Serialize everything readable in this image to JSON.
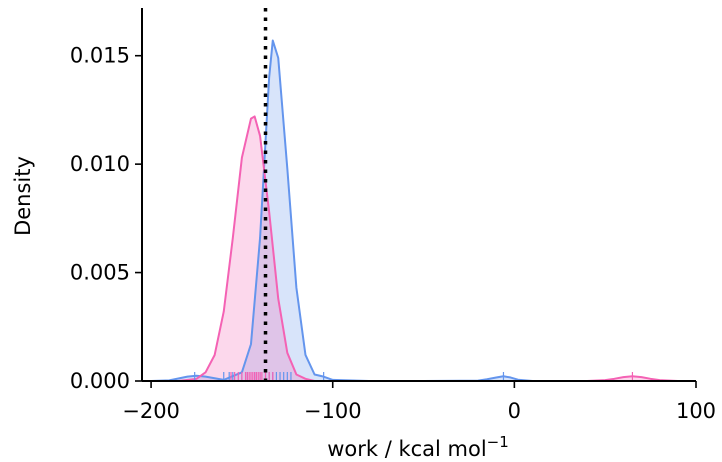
{
  "chart_data": {
    "type": "area",
    "title": "",
    "xlabel": "work / kcal mol",
    "xlabel_superscript": "−1",
    "ylabel": "Density",
    "xlim": [
      -205,
      100
    ],
    "ylim": [
      0,
      0.0172
    ],
    "x_ticks": [
      -200,
      -100,
      0,
      100
    ],
    "x_tick_labels": [
      "−200",
      "−100",
      "0",
      "100"
    ],
    "y_ticks": [
      0,
      0.005,
      0.01,
      0.015
    ],
    "y_tick_labels": [
      "0.000",
      "0.005",
      "0.010",
      "0.015"
    ],
    "grid": false,
    "legend": "none",
    "reference_line": {
      "x": -137,
      "style": "dotted",
      "color": "#000000"
    },
    "series": [
      {
        "color": "#6495ED",
        "fill_opacity": 0.25,
        "x": [
          -200,
          -190,
          -180,
          -175,
          -170,
          -160,
          -150,
          -145,
          -140,
          -135,
          -133,
          -130,
          -125,
          -120,
          -115,
          -110,
          -105,
          -100,
          -80,
          -50,
          -20,
          -15,
          -10,
          -6,
          -2,
          2,
          10,
          30,
          60,
          90,
          100
        ],
        "y": [
          0.0,
          3e-05,
          0.0002,
          0.00024,
          0.0002,
          5e-05,
          0.0004,
          0.0017,
          0.0066,
          0.014,
          0.0157,
          0.0149,
          0.0098,
          0.0043,
          0.0012,
          0.0003,
          0.0002,
          5e-05,
          0.0,
          0.0,
          2e-05,
          8e-05,
          0.00016,
          0.00022,
          0.00016,
          6e-05,
          0.0,
          0.0,
          0.0,
          0.0,
          0.0
        ],
        "rug": [
          -176,
          -160,
          -157,
          -155,
          -150,
          -147,
          -143,
          -140,
          -137,
          -135,
          -133,
          -131,
          -129,
          -127,
          -125,
          -123,
          -105,
          -6
        ]
      },
      {
        "color": "#F462B4",
        "fill_opacity": 0.25,
        "x": [
          -200,
          -185,
          -175,
          -170,
          -165,
          -160,
          -155,
          -150,
          -145,
          -143,
          -140,
          -135,
          -130,
          -125,
          -120,
          -115,
          -110,
          -100,
          -50,
          0,
          40,
          50,
          55,
          60,
          65,
          70,
          75,
          80,
          90,
          100
        ],
        "y": [
          0.0,
          0.0,
          0.0001,
          0.0004,
          0.0012,
          0.0032,
          0.0066,
          0.0103,
          0.0121,
          0.0122,
          0.0113,
          0.0078,
          0.0038,
          0.0013,
          0.0003,
          0.0001,
          0.0,
          0.0,
          0.0,
          0.0,
          0.0,
          4e-05,
          0.0001,
          0.00018,
          0.00022,
          0.00018,
          0.0001,
          4e-05,
          0.0,
          0.0
        ],
        "rug": [
          -156,
          -154,
          -152,
          -150,
          -148,
          -147,
          -146,
          -145,
          -144,
          -143,
          -142,
          -141,
          -140,
          -139,
          -137,
          -135,
          -133,
          65
        ]
      }
    ]
  }
}
